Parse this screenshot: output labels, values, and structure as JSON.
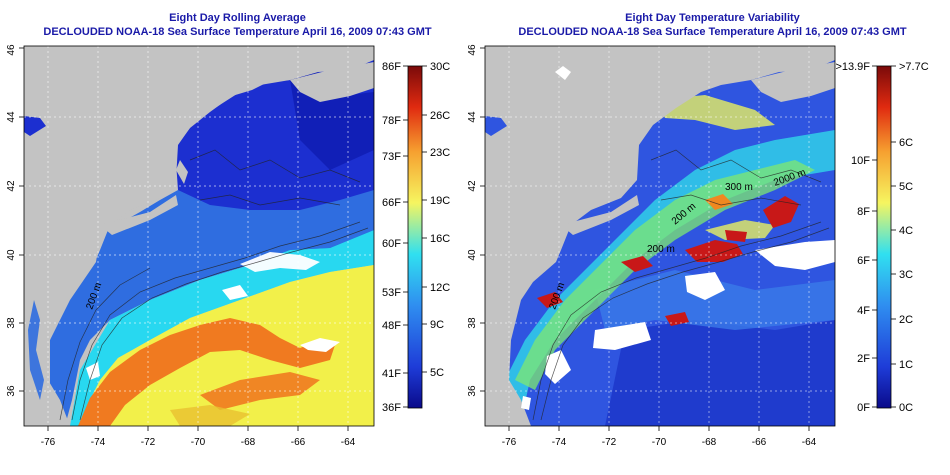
{
  "colors": {
    "land": "#c3c3c3",
    "deep_blue": "#1c2fd0",
    "mid_blue": "#2f6de0",
    "cyan": "#28d8f0",
    "yellow": "#f2f04a",
    "orange": "#f07a20",
    "dark_red": "#8a1010",
    "title": "#1a1aa8"
  },
  "left_panel": {
    "title": "Eight Day Rolling Average",
    "subtitle": "DECLOUDED NOAA-18 Sea Surface Temperature April 16, 2009 07:43 GMT",
    "contour_label": "200 m",
    "x_ticks": [
      "-76",
      "-74",
      "-72",
      "-70",
      "-68",
      "-66",
      "-64"
    ],
    "y_ticks": [
      "36",
      "38",
      "40",
      "42",
      "44",
      "46"
    ],
    "colorbar": {
      "left_labels": [
        "86F",
        "78F",
        "73F",
        "66F",
        "60F",
        "53F",
        "48F",
        "41F",
        "36F"
      ],
      "right_labels": [
        "30C",
        "26C",
        "23C",
        "19C",
        "16C",
        "12C",
        "9C",
        "5C"
      ]
    }
  },
  "right_panel": {
    "title": "Eight Day Temperature Variability",
    "subtitle": "DECLOUDED NOAA-18 Sea Surface Temperature April 16, 2009 07:43 GMT",
    "contour_labels": [
      "200 m",
      "300 m",
      "2000 m",
      "200 m",
      "200 m"
    ],
    "x_ticks": [
      "-76",
      "-74",
      "-72",
      "-70",
      "-68",
      "-66",
      "-64"
    ],
    "y_ticks": [
      "36",
      "38",
      "40",
      "42",
      "44",
      "46"
    ],
    "colorbar": {
      "left_labels": [
        ">13.9F",
        "10F",
        "8F",
        "6F",
        "4F",
        "2F",
        "0F"
      ],
      "right_labels": [
        ">7.7C",
        "6C",
        "5C",
        "4C",
        "3C",
        "2C",
        "1C",
        "0C"
      ]
    }
  }
}
